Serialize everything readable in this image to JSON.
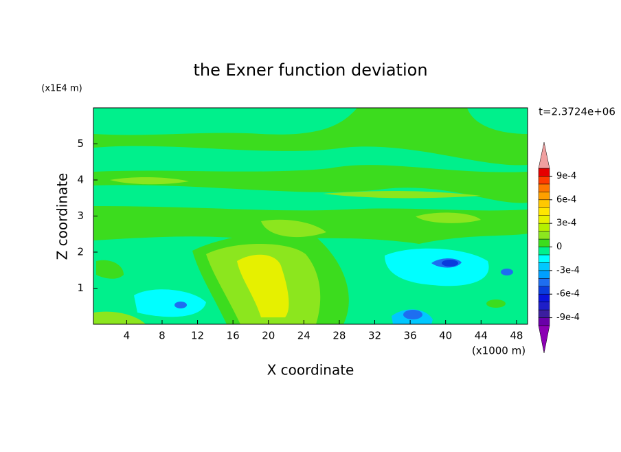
{
  "chart_data": {
    "type": "contour",
    "title": "the Exner function deviation",
    "xlabel": "X coordinate",
    "ylabel": "Z coordinate",
    "x_unit_label": "(x1000 m)",
    "y_unit_label": "(x1E4 m)",
    "annotation": "t=2.3724e+06",
    "xlim": [
      0.25,
      49.25
    ],
    "xticks": [
      4,
      8,
      12,
      16,
      20,
      24,
      28,
      32,
      36,
      40,
      44,
      48
    ],
    "ylim": [
      0,
      6
    ],
    "yticks": [
      1,
      2,
      3,
      4,
      5
    ],
    "colorbar": {
      "lim": [
        -0.001,
        0.001
      ],
      "levels": [
        -0.001,
        -0.0009,
        -0.0008,
        -0.0007,
        -0.0006,
        -0.0005,
        -0.0004,
        -0.0003,
        -0.0002,
        -0.0001,
        0,
        0.0001,
        0.0002,
        0.0003,
        0.0004,
        0.0005,
        0.0006,
        0.0007,
        0.0008,
        0.0009,
        0.001
      ],
      "colors": [
        "#6a00a8",
        "#3c1e9e",
        "#1e1ec8",
        "#0a14dc",
        "#0a3cdc",
        "#1e6ef0",
        "#00a0ff",
        "#00c8ff",
        "#00ffff",
        "#00f08c",
        "#3cdc1e",
        "#8ce61e",
        "#b4f000",
        "#e6f000",
        "#ffe600",
        "#ffc800",
        "#ffa000",
        "#ff7800",
        "#ff3c00",
        "#e60000"
      ],
      "over_color": "#f0a0a0",
      "under_color": "#8c00b4",
      "ticks": [
        {
          "value": 0.0009,
          "label": "9e-4"
        },
        {
          "value": 0.0006,
          "label": "6e-4"
        },
        {
          "value": 0.0003,
          "label": "3e-4"
        },
        0,
        {
          "value": -0.0003,
          "label": "-3e-4"
        },
        {
          "value": -0.0006,
          "label": "-6e-4"
        },
        {
          "value": -0.0009,
          "label": "-9e-4"
        }
      ]
    }
  }
}
